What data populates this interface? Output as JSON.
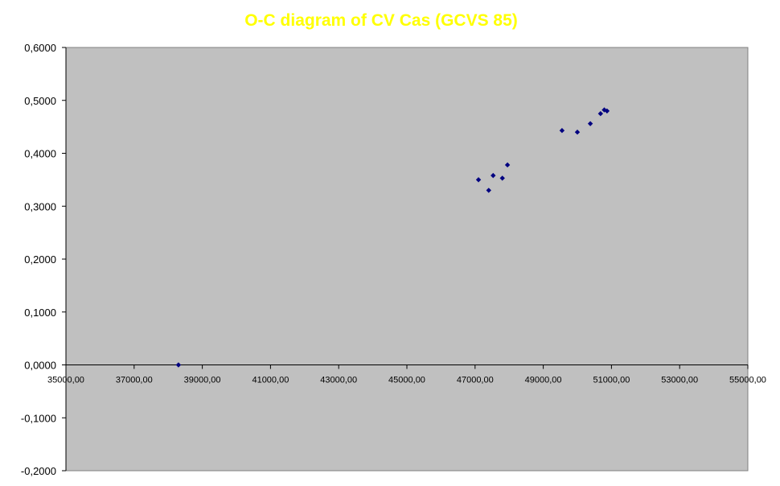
{
  "colors": {
    "title": "#FFFF00",
    "plot_area": "#C0C0C0",
    "axis": "#000000",
    "marker": "#000080"
  },
  "chart_data": {
    "type": "scatter",
    "title": "O-C diagram of CV Cas  (GCVS 85)",
    "xlabel": "",
    "ylabel": "",
    "xlim": [
      35000,
      55000
    ],
    "ylim": [
      -0.2,
      0.6
    ],
    "x_ticks": [
      35000,
      37000,
      39000,
      41000,
      43000,
      45000,
      47000,
      49000,
      51000,
      53000,
      55000
    ],
    "x_tick_labels": [
      "35000,00",
      "37000,00",
      "39000,00",
      "41000,00",
      "43000,00",
      "45000,00",
      "47000,00",
      "49000,00",
      "51000,00",
      "53000,00",
      "55000,00"
    ],
    "y_ticks": [
      0.6,
      0.5,
      0.4,
      0.3,
      0.2,
      0.1,
      0.0,
      -0.1,
      -0.2
    ],
    "y_tick_labels": [
      "0,6000",
      "0,5000",
      "0,4000",
      "0,3000",
      "0,2000",
      "0,1000",
      "0,0000",
      "-0,1000",
      "-0,2000"
    ],
    "grid": false,
    "legend": "none",
    "series": [
      {
        "marker": "diamond",
        "points": [
          [
            38300,
            0.0
          ],
          [
            47100,
            0.35
          ],
          [
            47400,
            0.33
          ],
          [
            47530,
            0.358
          ],
          [
            47800,
            0.353
          ],
          [
            47950,
            0.378
          ],
          [
            49550,
            0.443
          ],
          [
            50000,
            0.44
          ],
          [
            50380,
            0.456
          ],
          [
            50680,
            0.475
          ],
          [
            50790,
            0.482
          ],
          [
            50870,
            0.48
          ]
        ]
      }
    ]
  }
}
